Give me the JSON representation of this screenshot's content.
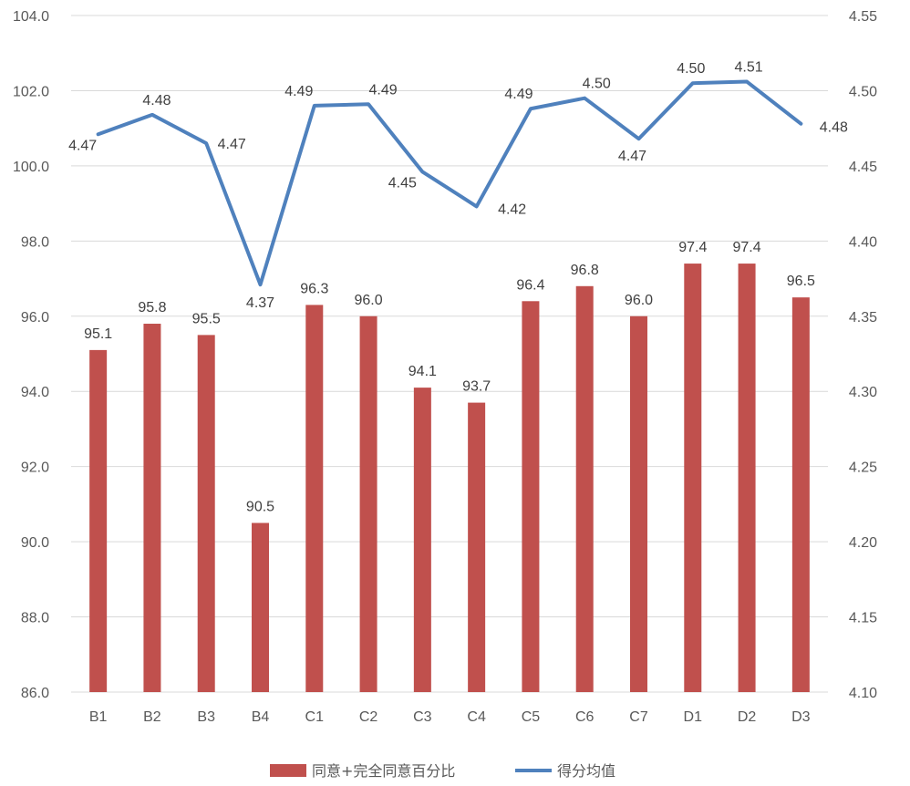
{
  "chart_data": {
    "type": "bar",
    "categories": [
      "B1",
      "B2",
      "B3",
      "B4",
      "C1",
      "C2",
      "C3",
      "C4",
      "C5",
      "C6",
      "C7",
      "D1",
      "D2",
      "D3"
    ],
    "series": [
      {
        "name": "同意+完全同意百分比",
        "type": "bar",
        "axis": "left",
        "values": [
          95.1,
          95.8,
          95.5,
          90.5,
          96.3,
          96.0,
          94.1,
          93.7,
          96.4,
          96.8,
          96.0,
          97.4,
          97.4,
          96.5
        ],
        "labels": [
          "95.1",
          "95.8",
          "95.5",
          "90.5",
          "96.3",
          "96.0",
          "94.1",
          "93.7",
          "96.4",
          "96.8",
          "96.0",
          "97.4",
          "97.4",
          "96.5"
        ],
        "color": "#C0504D"
      },
      {
        "name": "得分均值",
        "type": "line",
        "axis": "right",
        "values": [
          4.471,
          4.484,
          4.465,
          4.371,
          4.49,
          4.491,
          4.446,
          4.423,
          4.488,
          4.495,
          4.468,
          4.505,
          4.506,
          4.478
        ],
        "labels": [
          "4.47",
          "4.48",
          "4.47",
          "4.37",
          "4.49",
          "4.49",
          "4.45",
          "4.42",
          "4.49",
          "4.50",
          "4.47",
          "4.50",
          "4.51",
          "4.48"
        ],
        "color": "#4F81BD"
      }
    ],
    "y_left": {
      "ylim": [
        86.0,
        104.0
      ],
      "ticks": [
        "86.0",
        "88.0",
        "90.0",
        "92.0",
        "94.0",
        "96.0",
        "98.0",
        "100.0",
        "102.0",
        "104.0"
      ]
    },
    "y_right": {
      "ylim": [
        4.1,
        4.55
      ],
      "ticks": [
        "4.10",
        "4.15",
        "4.20",
        "4.25",
        "4.30",
        "4.35",
        "4.40",
        "4.45",
        "4.50",
        "4.55"
      ]
    },
    "grid": true,
    "legend_position": "bottom"
  }
}
